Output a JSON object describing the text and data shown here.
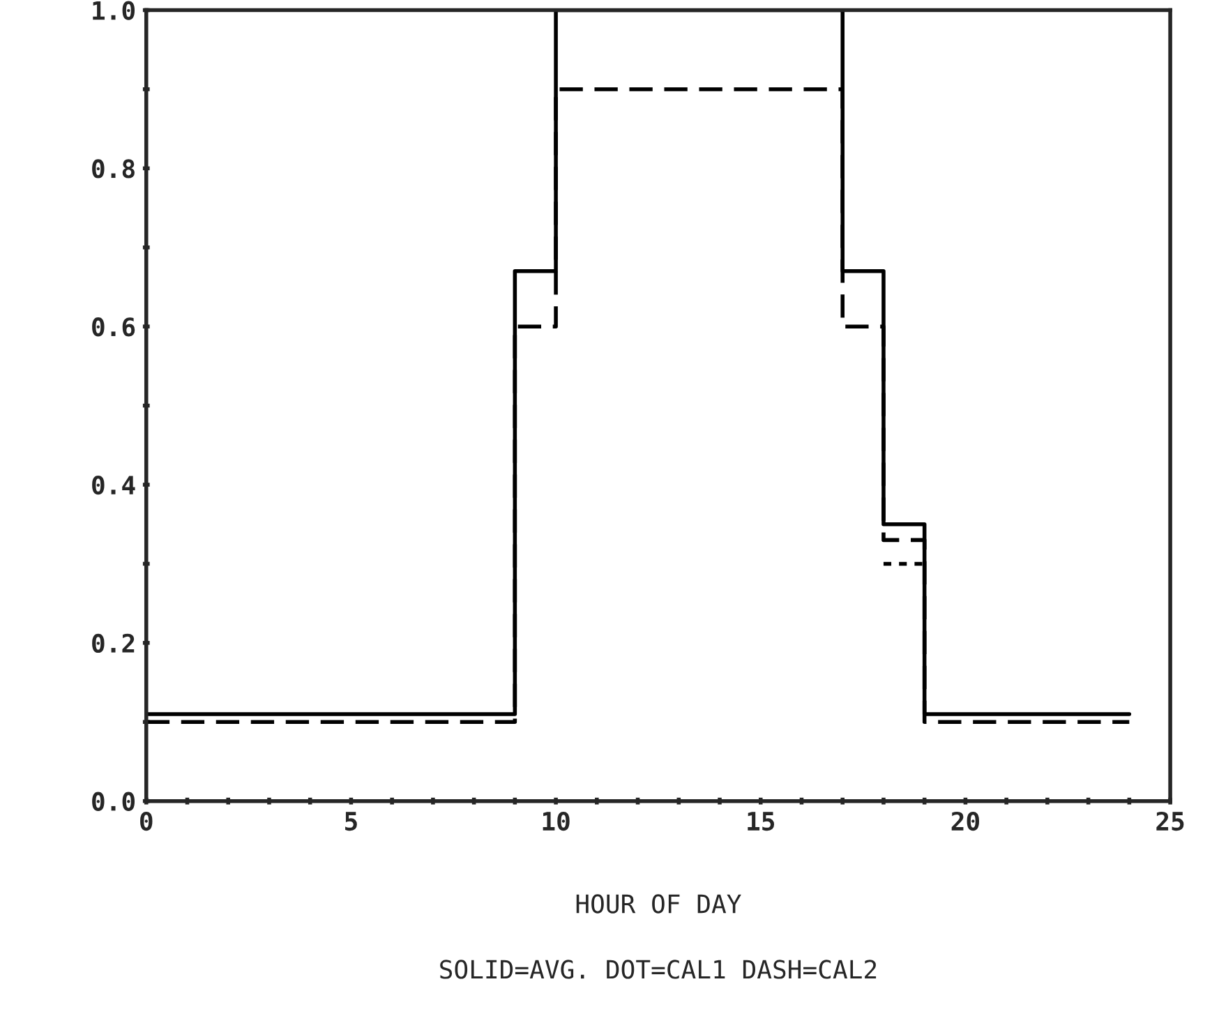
{
  "chart_data": {
    "type": "step",
    "xlabel": "HOUR OF DAY",
    "annotations": [
      "SOLID=AVG. DOT=CAL1 DASH=CAL2"
    ],
    "xlim": [
      0,
      25
    ],
    "ylim": [
      0,
      1.0
    ],
    "xticks": [
      {
        "value": 0,
        "label": "0"
      },
      {
        "value": 1,
        "label": null
      },
      {
        "value": 2,
        "label": null
      },
      {
        "value": 3,
        "label": null
      },
      {
        "value": 4,
        "label": null
      },
      {
        "value": 5,
        "label": "5"
      },
      {
        "value": 6,
        "label": null
      },
      {
        "value": 7,
        "label": null
      },
      {
        "value": 8,
        "label": null
      },
      {
        "value": 9,
        "label": null
      },
      {
        "value": 10,
        "label": "10"
      },
      {
        "value": 11,
        "label": null
      },
      {
        "value": 12,
        "label": null
      },
      {
        "value": 13,
        "label": null
      },
      {
        "value": 14,
        "label": null
      },
      {
        "value": 15,
        "label": "15"
      },
      {
        "value": 16,
        "label": null
      },
      {
        "value": 17,
        "label": null
      },
      {
        "value": 18,
        "label": null
      },
      {
        "value": 19,
        "label": null
      },
      {
        "value": 20,
        "label": "20"
      },
      {
        "value": 21,
        "label": null
      },
      {
        "value": 22,
        "label": null
      },
      {
        "value": 23,
        "label": null
      },
      {
        "value": 24,
        "label": null
      },
      {
        "value": 25,
        "label": "25"
      }
    ],
    "yticks": [
      {
        "value": 0,
        "label": "0.0"
      },
      {
        "value": 0.1,
        "label": null
      },
      {
        "value": 0.2,
        "label": "0.2"
      },
      {
        "value": 0.3,
        "label": null
      },
      {
        "value": 0.4,
        "label": "0.4"
      },
      {
        "value": 0.5,
        "label": null
      },
      {
        "value": 0.6,
        "label": "0.6"
      },
      {
        "value": 0.7,
        "label": null
      },
      {
        "value": 0.8,
        "label": "0.8"
      },
      {
        "value": 0.9,
        "label": null
      },
      {
        "value": 1.0,
        "label": "1.0"
      }
    ],
    "grid": false,
    "legend": false,
    "series": [
      {
        "color": "#000000",
        "line_style": "solid",
        "x": [
          0,
          9,
          10,
          17,
          18,
          19,
          24
        ],
        "values": [
          0.11,
          0.67,
          1.0,
          0.67,
          0.35,
          0.11,
          0.11
        ]
      },
      {
        "color": "#000000",
        "line_style": "dotted",
        "x": [
          18,
          19
        ],
        "values": [
          0.3,
          0.3
        ]
      },
      {
        "color": "#000000",
        "line_style": "dashed",
        "x": [
          0,
          9,
          10,
          17,
          18,
          19,
          24
        ],
        "values": [
          0.1,
          0.6,
          0.9,
          0.6,
          0.33,
          0.1,
          0.1
        ]
      }
    ]
  }
}
